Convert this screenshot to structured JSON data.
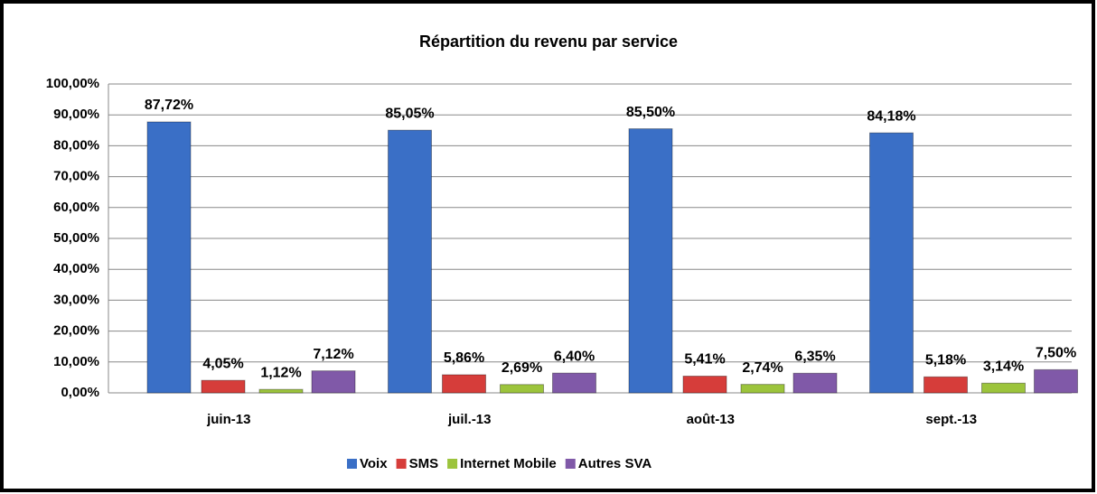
{
  "chart_data": {
    "type": "bar",
    "title": "Répartition du revenu par service",
    "categories": [
      "juin-13",
      "juil.-13",
      "août-13",
      "sept.-13"
    ],
    "series": [
      {
        "name": "Voix",
        "color": "#3a6fc6",
        "values": [
          87.72,
          85.05,
          85.5,
          84.18
        ],
        "value_labels": [
          "87,72%",
          "85,05%",
          "85,50%",
          "84,18%"
        ]
      },
      {
        "name": "SMS",
        "color": "#d63d3a",
        "values": [
          4.05,
          5.86,
          5.41,
          5.18
        ],
        "value_labels": [
          "4,05%",
          "5,86%",
          "5,41%",
          "5,18%"
        ]
      },
      {
        "name": "Internet Mobile",
        "color": "#9cc43c",
        "values": [
          1.12,
          2.69,
          2.74,
          3.14
        ],
        "value_labels": [
          "1,12%",
          "2,69%",
          "2,74%",
          "3,14%"
        ]
      },
      {
        "name": "Autres SVA",
        "color": "#8059a8",
        "values": [
          7.12,
          6.4,
          6.35,
          7.5
        ],
        "value_labels": [
          "7,12%",
          "6,40%",
          "6,35%",
          "7,50%"
        ]
      }
    ],
    "ylim": [
      0,
      100
    ],
    "yticks": [
      {
        "value": 0,
        "label": "0,00%"
      },
      {
        "value": 10,
        "label": "10,00%"
      },
      {
        "value": 20,
        "label": "20,00%"
      },
      {
        "value": 30,
        "label": "30,00%"
      },
      {
        "value": 40,
        "label": "40,00%"
      },
      {
        "value": 50,
        "label": "50,00%"
      },
      {
        "value": 60,
        "label": "60,00%"
      },
      {
        "value": 70,
        "label": "70,00%"
      },
      {
        "value": 80,
        "label": "80,00%"
      },
      {
        "value": 90,
        "label": "90,00%"
      },
      {
        "value": 100,
        "label": "100,00%"
      }
    ],
    "grid": true,
    "legend": "bottom"
  }
}
